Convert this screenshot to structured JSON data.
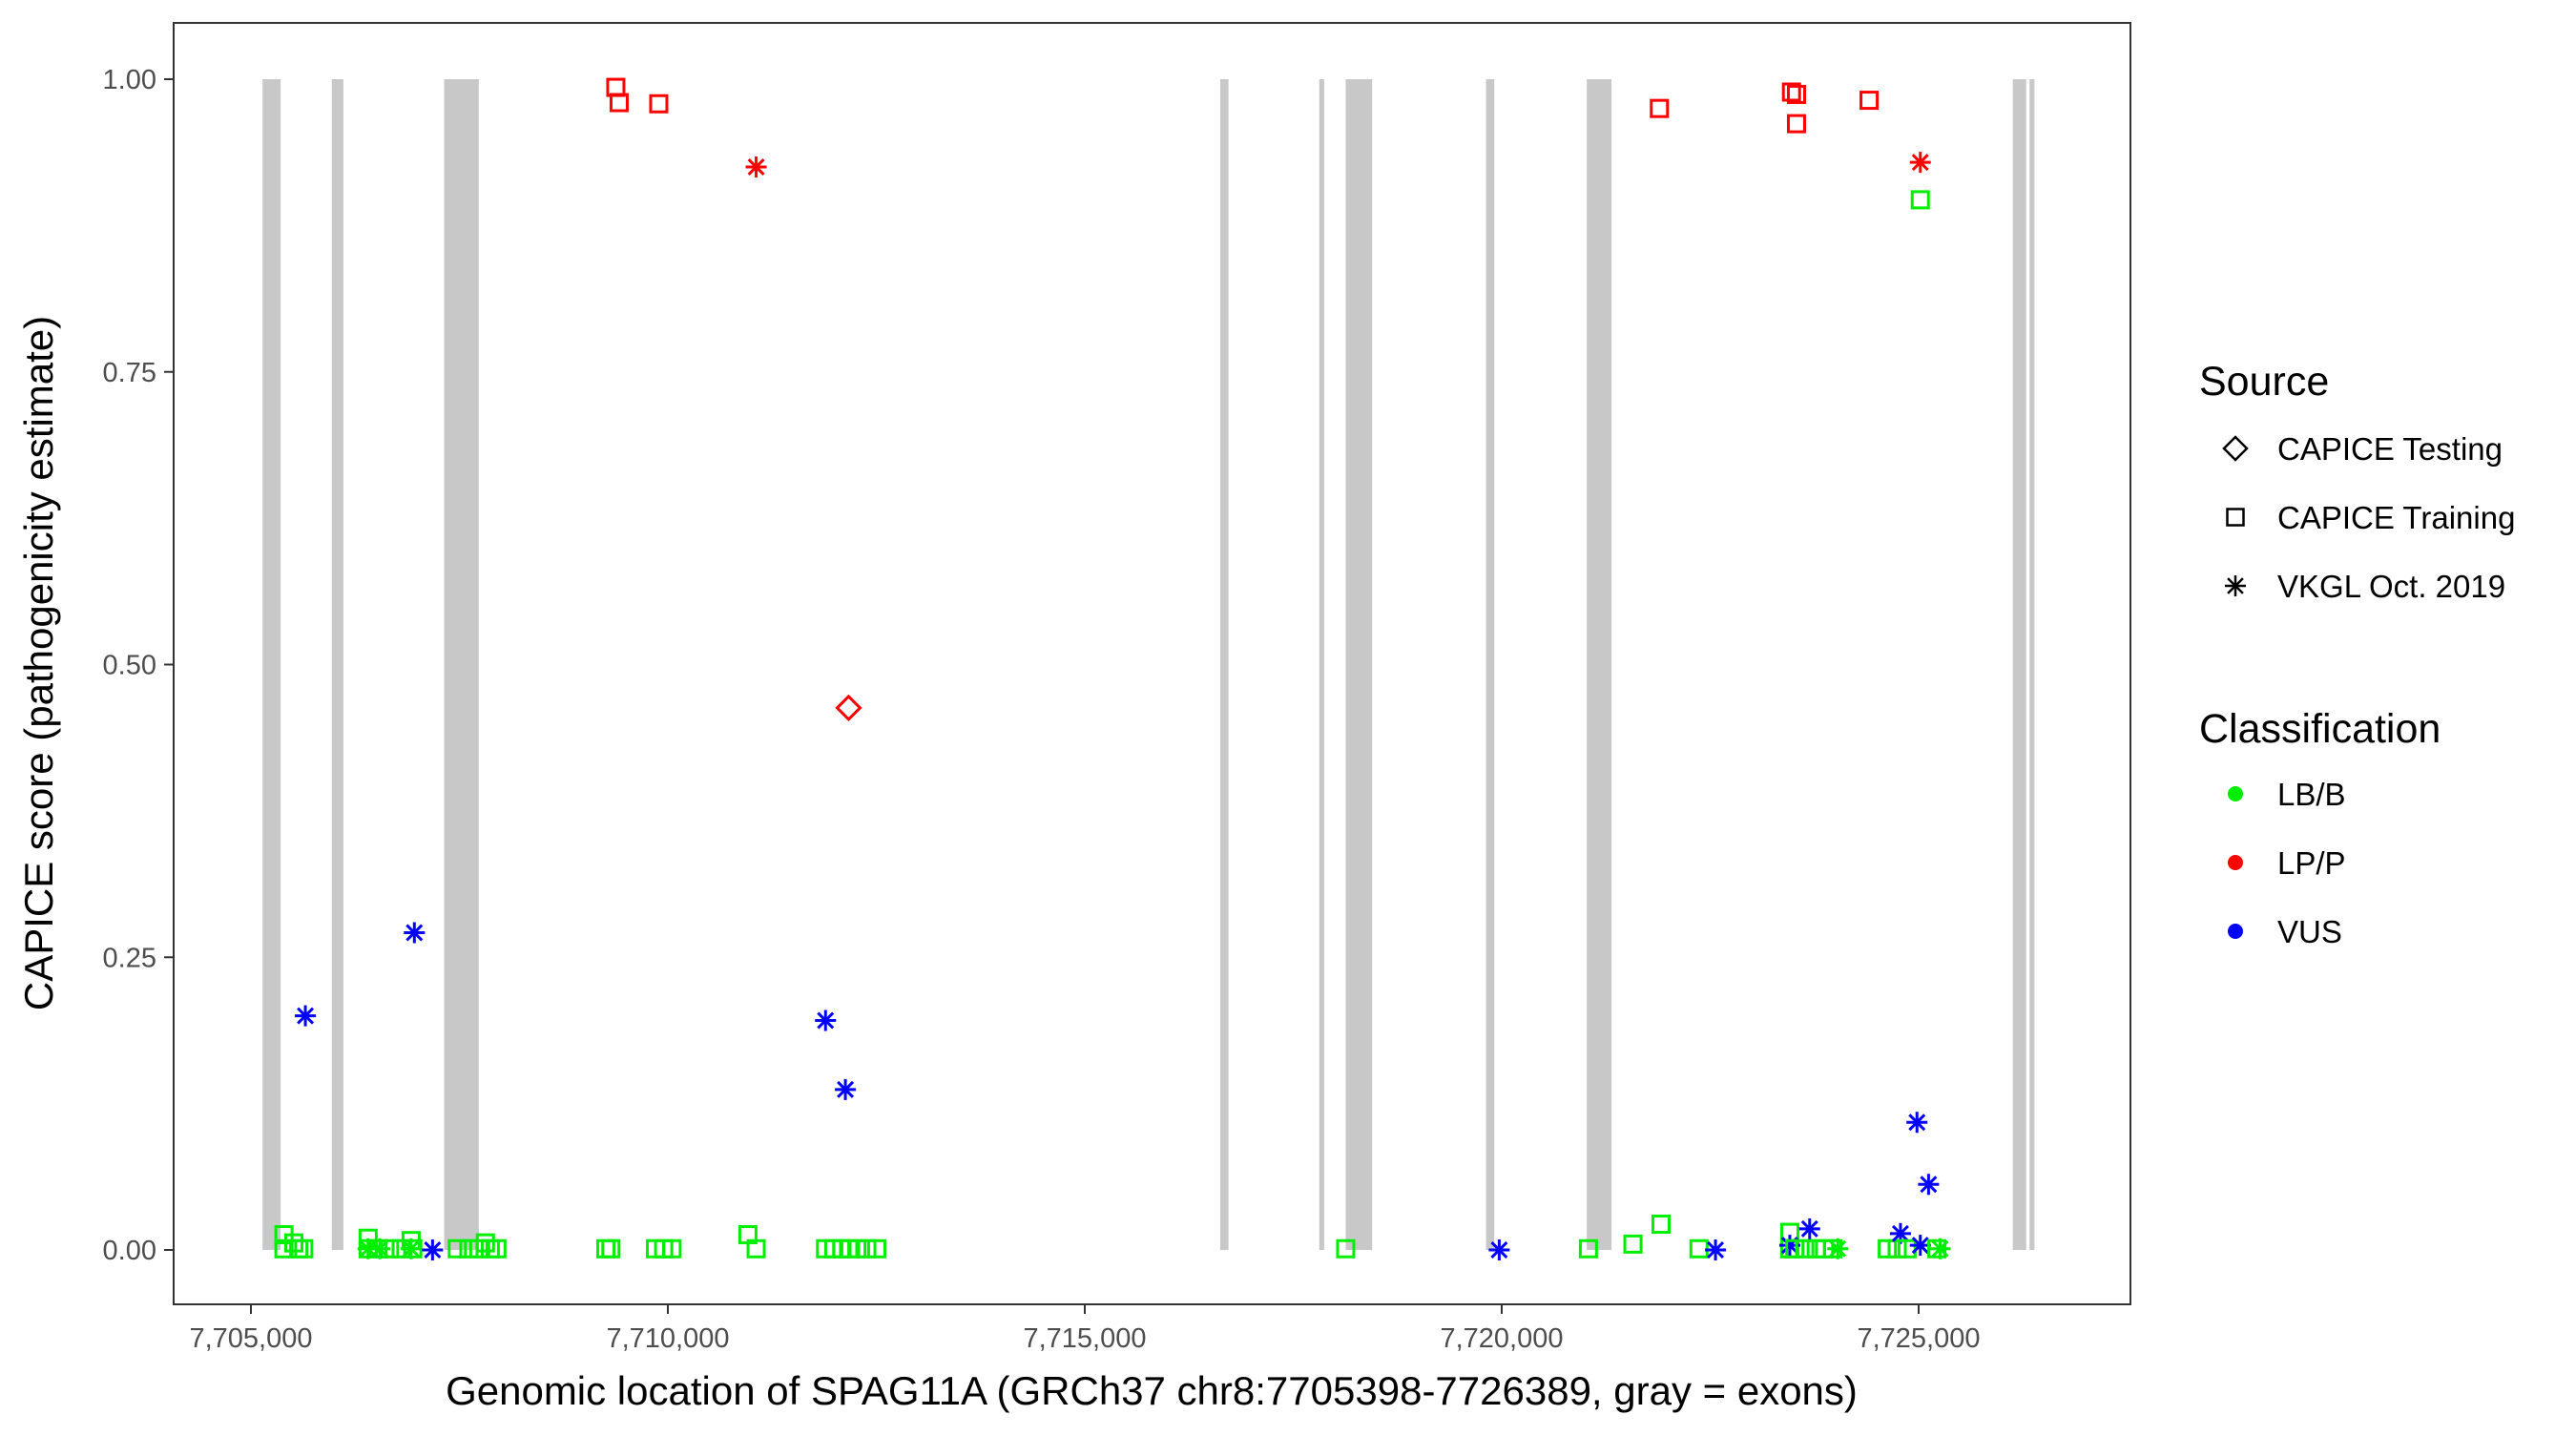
{
  "chart_data": {
    "type": "scatter",
    "title": "",
    "xlabel": "Genomic location of SPAG11A (GRCh37 chr8:7705398-7726389, gray = exons)",
    "ylabel": "CAPICE score (pathogenicity estimate)",
    "xlim": [
      7703150,
      7729100
    ],
    "ylim": [
      -0.045,
      1.045
    ],
    "x_ticks": [
      7705000,
      7710000,
      7715000,
      7720000,
      7725000
    ],
    "x_tick_labels": [
      "7,705,000",
      "7,710,000",
      "7,715,000",
      "7,720,000",
      "7,725,000"
    ],
    "y_ticks": [
      0,
      0.25,
      0.5,
      0.75,
      1.0
    ],
    "y_tick_labels": [
      "0.00",
      "0.25",
      "0.50",
      "0.75",
      "1.00"
    ],
    "grid": false,
    "exons": [
      [
        7705139,
        7705356
      ],
      [
        7705970,
        7706109
      ],
      [
        7707317,
        7707733
      ],
      [
        7716624,
        7716723
      ],
      [
        7717812,
        7717871
      ],
      [
        7718129,
        7718446
      ],
      [
        7719812,
        7719911
      ],
      [
        7721020,
        7721317
      ],
      [
        7726129,
        7726290
      ],
      [
        7726330,
        7726389
      ]
    ],
    "exon_color": "#c8c8c8",
    "legend": {
      "placement": "right",
      "source_title": "Source",
      "source_items": [
        {
          "label": "CAPICE Testing",
          "shape": "diamond"
        },
        {
          "label": "CAPICE Training",
          "shape": "square"
        },
        {
          "label": "VKGL Oct. 2019",
          "shape": "star"
        }
      ],
      "class_title": "Classification",
      "class_items": [
        {
          "label": "LB/B",
          "color": "#00ee00"
        },
        {
          "label": "LP/P",
          "color": "#ff0000"
        },
        {
          "label": "VUS",
          "color": "#0000ff"
        }
      ]
    },
    "points": [
      {
        "x": 7709376,
        "y": 0.993,
        "source": "CAPICE Training",
        "class": "LP/P"
      },
      {
        "x": 7709416,
        "y": 0.98,
        "source": "CAPICE Training",
        "class": "LP/P"
      },
      {
        "x": 7709891,
        "y": 0.979,
        "source": "CAPICE Training",
        "class": "LP/P"
      },
      {
        "x": 7721891,
        "y": 0.975,
        "source": "CAPICE Training",
        "class": "LP/P"
      },
      {
        "x": 7723475,
        "y": 0.989,
        "source": "CAPICE Training",
        "class": "LP/P"
      },
      {
        "x": 7723535,
        "y": 0.987,
        "source": "CAPICE Training",
        "class": "LP/P"
      },
      {
        "x": 7723535,
        "y": 0.962,
        "source": "CAPICE Training",
        "class": "LP/P"
      },
      {
        "x": 7724406,
        "y": 0.982,
        "source": "CAPICE Training",
        "class": "LP/P"
      },
      {
        "x": 7711059,
        "y": 0.925,
        "source": "VKGL Oct. 2019",
        "class": "LP/P"
      },
      {
        "x": 7725020,
        "y": 0.929,
        "source": "VKGL Oct. 2019",
        "class": "LP/P"
      },
      {
        "x": 7712168,
        "y": 0.463,
        "source": "CAPICE Testing",
        "class": "LP/P"
      },
      {
        "x": 7725020,
        "y": 0.897,
        "source": "CAPICE Training",
        "class": "LB/B"
      },
      {
        "x": 7705653,
        "y": 0.2,
        "source": "VKGL Oct. 2019",
        "class": "VUS"
      },
      {
        "x": 7706960,
        "y": 0.271,
        "source": "VKGL Oct. 2019",
        "class": "VUS"
      },
      {
        "x": 7711891,
        "y": 0.196,
        "source": "VKGL Oct. 2019",
        "class": "VUS"
      },
      {
        "x": 7712129,
        "y": 0.137,
        "source": "VKGL Oct. 2019",
        "class": "VUS"
      },
      {
        "x": 7724980,
        "y": 0.109,
        "source": "VKGL Oct. 2019",
        "class": "VUS"
      },
      {
        "x": 7725119,
        "y": 0.056,
        "source": "VKGL Oct. 2019",
        "class": "VUS"
      },
      {
        "x": 7705396,
        "y": 0.013,
        "source": "CAPICE Training",
        "class": "LB/B"
      },
      {
        "x": 7705396,
        "y": 0.001,
        "source": "CAPICE Training",
        "class": "LB/B"
      },
      {
        "x": 7705515,
        "y": 0.006,
        "source": "CAPICE Training",
        "class": "LB/B"
      },
      {
        "x": 7705574,
        "y": 0.001,
        "source": "CAPICE Training",
        "class": "LB/B"
      },
      {
        "x": 7705634,
        "y": 0.001,
        "source": "CAPICE Training",
        "class": "LB/B"
      },
      {
        "x": 7706405,
        "y": 0.001,
        "source": "VKGL Oct. 2019",
        "class": "LB/B"
      },
      {
        "x": 7706406,
        "y": 0.01,
        "source": "CAPICE Training",
        "class": "LB/B"
      },
      {
        "x": 7706406,
        "y": 0.001,
        "source": "CAPICE Training",
        "class": "LB/B"
      },
      {
        "x": 7706525,
        "y": 0.001,
        "source": "CAPICE Training",
        "class": "LB/B"
      },
      {
        "x": 7706545,
        "y": 0.001,
        "source": "VKGL Oct. 2019",
        "class": "LB/B"
      },
      {
        "x": 7706663,
        "y": 0.001,
        "source": "CAPICE Training",
        "class": "LB/B"
      },
      {
        "x": 7706802,
        "y": 0.001,
        "source": "CAPICE Training",
        "class": "LB/B"
      },
      {
        "x": 7706921,
        "y": 0.001,
        "source": "VKGL Oct. 2019",
        "class": "LB/B"
      },
      {
        "x": 7706921,
        "y": 0.008,
        "source": "CAPICE Training",
        "class": "LB/B"
      },
      {
        "x": 7706941,
        "y": 0.001,
        "source": "CAPICE Training",
        "class": "LB/B"
      },
      {
        "x": 7707178,
        "y": 0.0,
        "source": "VKGL Oct. 2019",
        "class": "VUS"
      },
      {
        "x": 7707475,
        "y": 0.001,
        "source": "CAPICE Training",
        "class": "LB/B"
      },
      {
        "x": 7707614,
        "y": 0.001,
        "source": "CAPICE Training",
        "class": "LB/B"
      },
      {
        "x": 7707733,
        "y": 0.001,
        "source": "CAPICE Training",
        "class": "LB/B"
      },
      {
        "x": 7707812,
        "y": 0.006,
        "source": "CAPICE Training",
        "class": "LB/B"
      },
      {
        "x": 7707871,
        "y": 0.001,
        "source": "CAPICE Training",
        "class": "LB/B"
      },
      {
        "x": 7707950,
        "y": 0.001,
        "source": "CAPICE Training",
        "class": "LB/B"
      },
      {
        "x": 7709257,
        "y": 0.001,
        "source": "CAPICE Training",
        "class": "LB/B"
      },
      {
        "x": 7709317,
        "y": 0.001,
        "source": "CAPICE Training",
        "class": "LB/B"
      },
      {
        "x": 7709851,
        "y": 0.001,
        "source": "CAPICE Training",
        "class": "LB/B"
      },
      {
        "x": 7709950,
        "y": 0.001,
        "source": "CAPICE Training",
        "class": "LB/B"
      },
      {
        "x": 7710050,
        "y": 0.001,
        "source": "CAPICE Training",
        "class": "LB/B"
      },
      {
        "x": 7710960,
        "y": 0.013,
        "source": "CAPICE Training",
        "class": "LB/B"
      },
      {
        "x": 7711059,
        "y": 0.001,
        "source": "CAPICE Training",
        "class": "LB/B"
      },
      {
        "x": 7711891,
        "y": 0.001,
        "source": "CAPICE Training",
        "class": "LB/B"
      },
      {
        "x": 7711990,
        "y": 0.001,
        "source": "CAPICE Training",
        "class": "LB/B"
      },
      {
        "x": 7712089,
        "y": 0.001,
        "source": "CAPICE Training",
        "class": "LB/B"
      },
      {
        "x": 7712168,
        "y": 0.001,
        "source": "CAPICE Training",
        "class": "LB/B"
      },
      {
        "x": 7712267,
        "y": 0.001,
        "source": "CAPICE Training",
        "class": "LB/B"
      },
      {
        "x": 7712386,
        "y": 0.001,
        "source": "CAPICE Training",
        "class": "LB/B"
      },
      {
        "x": 7712505,
        "y": 0.001,
        "source": "CAPICE Training",
        "class": "LB/B"
      },
      {
        "x": 7718129,
        "y": 0.001,
        "source": "CAPICE Training",
        "class": "LB/B"
      },
      {
        "x": 7719970,
        "y": 0.0,
        "source": "VKGL Oct. 2019",
        "class": "VUS"
      },
      {
        "x": 7721040,
        "y": 0.001,
        "source": "CAPICE Training",
        "class": "LB/B"
      },
      {
        "x": 7721574,
        "y": 0.005,
        "source": "CAPICE Training",
        "class": "LB/B"
      },
      {
        "x": 7721911,
        "y": 0.022,
        "source": "CAPICE Training",
        "class": "LB/B"
      },
      {
        "x": 7722366,
        "y": 0.001,
        "source": "CAPICE Training",
        "class": "LB/B"
      },
      {
        "x": 7722564,
        "y": 0.0,
        "source": "VKGL Oct. 2019",
        "class": "VUS"
      },
      {
        "x": 7723455,
        "y": 0.015,
        "source": "CAPICE Training",
        "class": "LB/B"
      },
      {
        "x": 7723455,
        "y": 0.001,
        "source": "CAPICE Training",
        "class": "LB/B"
      },
      {
        "x": 7723455,
        "y": 0.004,
        "source": "VKGL Oct. 2019",
        "class": "VUS"
      },
      {
        "x": 7723515,
        "y": 0.001,
        "source": "CAPICE Training",
        "class": "LB/B"
      },
      {
        "x": 7723634,
        "y": 0.001,
        "source": "CAPICE Training",
        "class": "LB/B"
      },
      {
        "x": 7723693,
        "y": 0.018,
        "source": "VKGL Oct. 2019",
        "class": "VUS"
      },
      {
        "x": 7723772,
        "y": 0.001,
        "source": "CAPICE Training",
        "class": "LB/B"
      },
      {
        "x": 7723871,
        "y": 0.001,
        "source": "CAPICE Training",
        "class": "LB/B"
      },
      {
        "x": 7723970,
        "y": 0.001,
        "source": "CAPICE Training",
        "class": "LB/B"
      },
      {
        "x": 7724030,
        "y": 0.001,
        "source": "VKGL Oct. 2019",
        "class": "LB/B"
      },
      {
        "x": 7724624,
        "y": 0.001,
        "source": "CAPICE Training",
        "class": "LB/B"
      },
      {
        "x": 7724743,
        "y": 0.001,
        "source": "CAPICE Training",
        "class": "LB/B"
      },
      {
        "x": 7724782,
        "y": 0.014,
        "source": "VKGL Oct. 2019",
        "class": "VUS"
      },
      {
        "x": 7724861,
        "y": 0.001,
        "source": "CAPICE Training",
        "class": "LB/B"
      },
      {
        "x": 7725020,
        "y": 0.004,
        "source": "VKGL Oct. 2019",
        "class": "VUS"
      },
      {
        "x": 7725218,
        "y": 0.001,
        "source": "CAPICE Training",
        "class": "LB/B"
      },
      {
        "x": 7725258,
        "y": 0.001,
        "source": "VKGL Oct. 2019",
        "class": "LB/B"
      }
    ]
  }
}
